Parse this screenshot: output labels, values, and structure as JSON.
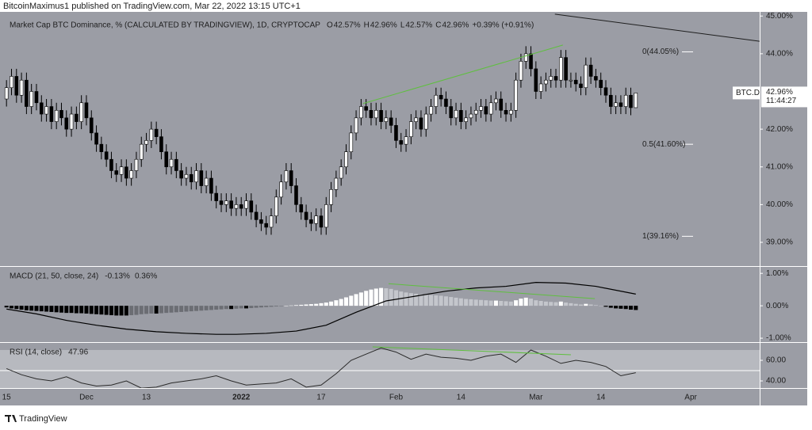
{
  "header": {
    "publisher": "BitcoinMaximus1 published on TradingView.com, Mar 22, 2022 13:15 UTC+1"
  },
  "footer": {
    "brand": "TradingView"
  },
  "chart_data": [
    {
      "type": "candlestick",
      "title": "Market Cap BTC Dominance, % (CALCULATED BY TRADINGVIEW), 1D, CRYPTOCAP",
      "legend": [
        {
          "key": "O",
          "value": "42.57%"
        },
        {
          "key": "H",
          "value": "42.96%"
        },
        {
          "key": "L",
          "value": "42.57%"
        },
        {
          "key": "C",
          "value": "42.96%"
        }
      ],
      "change": "+0.39% (+0.91%)",
      "open": [
        42.8,
        43.1,
        43.4,
        42.9,
        43.3,
        42.6,
        43.0,
        42.7,
        42.4,
        42.6,
        42.2,
        42.5,
        42.3,
        42.0,
        42.4,
        42.2,
        42.7,
        42.3,
        41.9,
        41.6,
        41.4,
        41.2,
        40.9,
        40.8,
        41.0,
        40.7,
        40.9,
        41.2,
        41.6,
        41.7,
        42.0,
        41.8,
        41.4,
        41.0,
        41.2,
        40.9,
        40.7,
        40.8,
        40.6,
        40.9,
        40.5,
        40.7,
        40.3,
        40.1,
        40.0,
        40.1,
        39.9,
        40.0,
        39.9,
        40.1,
        39.8,
        39.6,
        39.5,
        39.4,
        39.7,
        40.2,
        40.6,
        40.9,
        40.5,
        40.0,
        39.8,
        39.6,
        39.5,
        39.7,
        39.4,
        40.0,
        40.4,
        40.7,
        41.0,
        41.4,
        41.9,
        42.3,
        42.6,
        42.5,
        42.3,
        42.5,
        42.2,
        42.3,
        42.1,
        41.7,
        41.6,
        41.8,
        42.2,
        42.3,
        42.0,
        42.4,
        42.6,
        42.9,
        42.8,
        42.6,
        42.3,
        42.5,
        42.2,
        42.3,
        42.4,
        42.5,
        42.6,
        42.4,
        42.7,
        42.8,
        42.5,
        42.4,
        42.5,
        43.3,
        43.8,
        44.0,
        43.6,
        43.0,
        43.2,
        43.3,
        43.4,
        43.3,
        43.9,
        43.3,
        43.3,
        43.2,
        43.1,
        43.7,
        43.4,
        43.3,
        43.1,
        42.9,
        42.6,
        42.7,
        42.6,
        42.9,
        42.57
      ],
      "high": [
        43.3,
        43.6,
        43.6,
        43.5,
        43.5,
        43.2,
        43.2,
        42.9,
        42.8,
        42.8,
        42.7,
        42.7,
        42.5,
        42.6,
        42.6,
        42.9,
        42.9,
        42.5,
        42.1,
        41.8,
        41.6,
        41.4,
        41.1,
        41.2,
        41.2,
        41.1,
        41.4,
        41.8,
        41.9,
        42.2,
        42.2,
        42.0,
        41.6,
        41.4,
        41.4,
        41.1,
        41.0,
        41.0,
        41.1,
        41.1,
        40.9,
        40.9,
        40.5,
        40.3,
        40.3,
        40.3,
        40.2,
        40.2,
        40.3,
        40.3,
        40.0,
        39.8,
        39.7,
        39.9,
        40.4,
        40.8,
        41.1,
        41.1,
        40.7,
        40.2,
        40.0,
        39.8,
        39.9,
        39.9,
        40.2,
        40.6,
        40.9,
        41.2,
        41.6,
        42.1,
        42.5,
        42.8,
        42.8,
        42.7,
        42.7,
        42.7,
        42.5,
        42.5,
        42.3,
        41.9,
        42.0,
        42.4,
        42.5,
        42.5,
        42.6,
        42.8,
        43.1,
        43.1,
        43.0,
        42.8,
        42.7,
        42.7,
        42.5,
        42.6,
        42.7,
        42.8,
        42.8,
        42.9,
        43.0,
        43.0,
        42.7,
        42.7,
        43.5,
        44.0,
        44.2,
        44.2,
        43.8,
        43.4,
        43.5,
        43.6,
        43.6,
        44.1,
        44.1,
        43.5,
        43.5,
        43.4,
        43.9,
        43.9,
        43.6,
        43.5,
        43.3,
        43.1,
        42.9,
        42.9,
        43.1,
        43.1,
        42.96
      ],
      "low": [
        42.6,
        42.9,
        42.7,
        42.7,
        42.4,
        42.4,
        42.5,
        42.2,
        42.2,
        42.0,
        42.0,
        42.1,
        41.8,
        41.8,
        42.0,
        42.0,
        42.1,
        41.7,
        41.4,
        41.2,
        41.0,
        40.7,
        40.6,
        40.6,
        40.5,
        40.5,
        40.7,
        41.0,
        41.4,
        41.5,
        41.6,
        41.2,
        40.8,
        40.8,
        40.7,
        40.5,
        40.5,
        40.4,
        40.4,
        40.3,
        40.3,
        40.1,
        39.9,
        39.8,
        39.8,
        39.7,
        39.7,
        39.7,
        39.7,
        39.6,
        39.4,
        39.3,
        39.2,
        39.2,
        39.5,
        40.0,
        40.4,
        40.3,
        39.8,
        39.6,
        39.4,
        39.3,
        39.3,
        39.2,
        39.2,
        39.8,
        40.2,
        40.5,
        40.8,
        41.2,
        41.7,
        42.1,
        42.3,
        42.1,
        42.1,
        42.0,
        42.0,
        41.9,
        41.5,
        41.4,
        41.4,
        41.6,
        42.0,
        41.8,
        41.8,
        42.2,
        42.4,
        42.6,
        42.4,
        42.1,
        42.1,
        42.0,
        42.0,
        42.1,
        42.2,
        42.3,
        42.2,
        42.2,
        42.5,
        42.3,
        42.2,
        42.2,
        42.3,
        43.1,
        43.6,
        43.4,
        42.8,
        42.8,
        43.0,
        43.1,
        43.1,
        43.1,
        43.1,
        43.1,
        43.0,
        42.9,
        42.9,
        43.2,
        43.1,
        42.9,
        42.7,
        42.4,
        42.4,
        42.4,
        42.4,
        42.37,
        42.57
      ],
      "close": [
        43.1,
        43.4,
        42.9,
        43.3,
        42.6,
        43.0,
        42.7,
        42.4,
        42.6,
        42.2,
        42.5,
        42.3,
        42.0,
        42.4,
        42.2,
        42.7,
        42.3,
        41.9,
        41.6,
        41.4,
        41.2,
        40.9,
        40.8,
        41.0,
        40.7,
        40.9,
        41.2,
        41.6,
        41.7,
        42.0,
        41.8,
        41.4,
        41.0,
        41.2,
        40.9,
        40.7,
        40.8,
        40.6,
        40.9,
        40.5,
        40.7,
        40.3,
        40.1,
        40.0,
        40.1,
        39.9,
        40.0,
        39.9,
        40.1,
        39.8,
        39.6,
        39.5,
        39.4,
        39.7,
        40.2,
        40.6,
        40.9,
        40.5,
        40.0,
        39.8,
        39.6,
        39.5,
        39.7,
        39.4,
        40.0,
        40.4,
        40.7,
        41.0,
        41.4,
        41.9,
        42.3,
        42.6,
        42.5,
        42.3,
        42.5,
        42.2,
        42.3,
        42.1,
        41.7,
        41.6,
        41.8,
        42.2,
        42.3,
        42.0,
        42.4,
        42.6,
        42.9,
        42.8,
        42.6,
        42.3,
        42.5,
        42.2,
        42.3,
        42.4,
        42.5,
        42.6,
        42.4,
        42.7,
        42.8,
        42.5,
        42.4,
        42.5,
        43.3,
        43.8,
        44.0,
        43.6,
        43.0,
        43.2,
        43.3,
        43.4,
        43.3,
        43.9,
        43.3,
        43.3,
        43.2,
        43.1,
        43.7,
        43.4,
        43.3,
        43.1,
        42.9,
        42.6,
        42.7,
        42.6,
        42.9,
        42.57,
        42.96
      ],
      "up_color": "#ffffff",
      "down_color": "#000000",
      "wick_color": "#000000",
      "xlim": [
        -1.3,
        150.8
      ],
      "xticks": [
        {
          "value": 0,
          "label": "15"
        },
        {
          "value": 16,
          "label": "Dec"
        },
        {
          "value": 28,
          "label": "13"
        },
        {
          "value": 47,
          "label": "2022"
        },
        {
          "value": 63,
          "label": "17"
        },
        {
          "value": 78,
          "label": "Feb"
        },
        {
          "value": 91,
          "label": "14"
        },
        {
          "value": 106,
          "label": "Mar"
        },
        {
          "value": 119,
          "label": "14"
        },
        {
          "value": 137,
          "label": "Apr"
        }
      ],
      "ylim": [
        38.37,
        45.11
      ],
      "yticks": [
        {
          "value": 45,
          "label": "45.00%"
        },
        {
          "value": 44,
          "label": "44.00%"
        },
        {
          "value": 42,
          "label": "42.00%"
        },
        {
          "value": 41,
          "label": "41.00%"
        },
        {
          "value": 40,
          "label": "40.00%"
        },
        {
          "value": 39,
          "label": "39.00%"
        }
      ],
      "fib_levels": [
        {
          "label": "0(44.05%)",
          "value": 44.05
        },
        {
          "label": "0.5(41.60%)",
          "value": 41.6
        },
        {
          "label": "1(39.16%)",
          "value": 39.16
        }
      ],
      "trendlines": [
        {
          "x": [
            71.4,
            111.4
          ],
          "y": [
            42.68,
            44.23
          ],
          "color": "#5fbf3f"
        },
        {
          "x": [
            109.8,
            150.8
          ],
          "y": [
            45.05,
            44.33
          ],
          "color": "#1e1e1e"
        }
      ],
      "symbol": "BTC.D",
      "last_price": "42.96%",
      "countdown": "11:44:27"
    },
    {
      "type": "macd",
      "title": "MACD (21, 50, close, 24)",
      "legend_values": [
        "-0.13%",
        "0.36%"
      ],
      "histogram": [
        -0.05,
        -0.08,
        -0.1,
        -0.12,
        -0.14,
        -0.15,
        -0.16,
        -0.17,
        -0.18,
        -0.19,
        -0.2,
        -0.21,
        -0.22,
        -0.22,
        -0.23,
        -0.23,
        -0.24,
        -0.25,
        -0.26,
        -0.27,
        -0.28,
        -0.29,
        -0.3,
        -0.3,
        -0.3,
        -0.29,
        -0.28,
        -0.26,
        -0.25,
        -0.24,
        -0.24,
        -0.23,
        -0.22,
        -0.21,
        -0.2,
        -0.19,
        -0.18,
        -0.17,
        -0.16,
        -0.15,
        -0.14,
        -0.13,
        -0.12,
        -0.11,
        -0.1,
        -0.1,
        -0.09,
        -0.08,
        -0.08,
        -0.07,
        -0.06,
        -0.05,
        -0.04,
        -0.03,
        -0.02,
        -0.01,
        0.0,
        0.01,
        0.02,
        0.03,
        0.04,
        0.05,
        0.06,
        0.08,
        0.1,
        0.13,
        0.17,
        0.21,
        0.26,
        0.31,
        0.36,
        0.41,
        0.46,
        0.5,
        0.53,
        0.55,
        0.54,
        0.52,
        0.48,
        0.44,
        0.41,
        0.39,
        0.37,
        0.35,
        0.34,
        0.33,
        0.32,
        0.31,
        0.29,
        0.27,
        0.25,
        0.23,
        0.21,
        0.2,
        0.19,
        0.18,
        0.17,
        0.16,
        0.16,
        0.15,
        0.14,
        0.13,
        0.17,
        0.22,
        0.25,
        0.22,
        0.17,
        0.15,
        0.13,
        0.12,
        0.11,
        0.13,
        0.1,
        0.08,
        0.06,
        0.04,
        0.06,
        0.04,
        0.02,
        0.0,
        -0.03,
        -0.06,
        -0.08,
        -0.09,
        -0.1,
        -0.12,
        -0.13
      ],
      "hist_colors": {
        "grow_above": "#ffffff",
        "fall_above": "#c4c6cc",
        "grow_below": "#6b6d73",
        "fall_below": "#000000"
      },
      "line": {
        "x": [
          0,
          6,
          12,
          18,
          24,
          30,
          36,
          42,
          46,
          52,
          58,
          64,
          70,
          76,
          82,
          88,
          94,
          100,
          106,
          112,
          118,
          126
        ],
        "values": [
          -0.1,
          -0.25,
          -0.45,
          -0.6,
          -0.72,
          -0.8,
          -0.85,
          -0.88,
          -0.88,
          -0.85,
          -0.78,
          -0.6,
          -0.2,
          0.15,
          0.3,
          0.45,
          0.55,
          0.6,
          0.72,
          0.7,
          0.6,
          0.36
        ],
        "color": "#000000"
      },
      "ylim": [
        -1.12,
        1.2
      ],
      "yticks": [
        {
          "value": 1,
          "label": "1.00%"
        },
        {
          "value": 0,
          "label": "0.00%"
        },
        {
          "value": -1,
          "label": "-1.00%"
        }
      ],
      "trendlines": [
        {
          "x": [
            76.5,
            117.8
          ],
          "y": [
            0.68,
            0.22
          ],
          "color": "#5fbf3f"
        }
      ]
    },
    {
      "type": "line",
      "title": "RSI (14, close)",
      "legend_values": [
        "47.96"
      ],
      "x": [
        0,
        3,
        6,
        9,
        12,
        15,
        18,
        21,
        24,
        27,
        30,
        33,
        36,
        39,
        42,
        45,
        48,
        51,
        54,
        57,
        60,
        63,
        66,
        69,
        72,
        75,
        78,
        81,
        84,
        87,
        90,
        93,
        96,
        99,
        102,
        105,
        108,
        111,
        114,
        117,
        120,
        123,
        126
      ],
      "values": [
        52,
        46,
        42,
        40,
        44,
        38,
        35,
        36,
        40,
        33,
        34,
        38,
        40,
        42,
        45,
        40,
        36,
        37,
        38,
        42,
        34,
        36,
        47,
        60,
        66,
        72,
        68,
        61,
        66,
        63,
        62,
        60,
        64,
        66,
        58,
        70,
        64,
        57,
        60,
        58,
        54,
        45,
        47.96
      ],
      "color": "#2a2a2a",
      "ylim": [
        33.1,
        76.9
      ],
      "yticks": [
        {
          "value": 60,
          "label": "60.00"
        },
        {
          "value": 40,
          "label": "40.00"
        }
      ],
      "band": [
        30,
        70
      ],
      "midline": 50,
      "trendlines": [
        {
          "x": [
            73.3,
            113
          ],
          "y": [
            73.1,
            65.4
          ],
          "color": "#5fbf3f"
        }
      ]
    }
  ]
}
